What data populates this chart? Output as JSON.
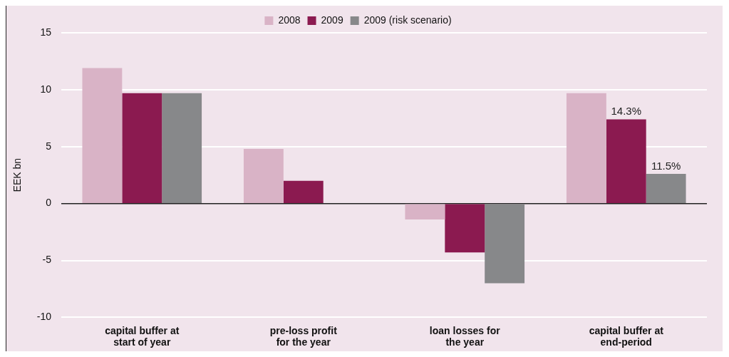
{
  "chart_data": {
    "type": "bar",
    "ylabel": "EEK bn",
    "categories": [
      "capital buffer at start of year",
      "pre-loss profit for the year",
      "loan losses for the year",
      "capital buffer at end-period"
    ],
    "series": [
      {
        "name": "2008",
        "color": "#d9b3c6",
        "values": [
          11.9,
          4.8,
          -1.4,
          9.7
        ]
      },
      {
        "name": "2009",
        "color": "#8b1a50",
        "values": [
          9.7,
          2.0,
          -4.3,
          7.4
        ]
      },
      {
        "name": "2009 (risk scenario)",
        "color": "#87888a",
        "values": [
          9.7,
          null,
          -7.0,
          2.6
        ]
      }
    ],
    "annotations": [
      "14.3%",
      "11.5%"
    ],
    "ylim": [
      -10,
      15
    ],
    "yticks": [
      -10,
      -5,
      0,
      5,
      10,
      15
    ],
    "grid": "y",
    "legend": "top"
  }
}
